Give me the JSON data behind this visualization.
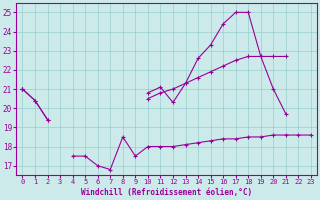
{
  "x": [
    0,
    1,
    2,
    3,
    4,
    5,
    6,
    7,
    8,
    9,
    10,
    11,
    12,
    13,
    14,
    15,
    16,
    17,
    18,
    19,
    20,
    21,
    22,
    23
  ],
  "line_bottom": [
    21.0,
    20.4,
    19.4,
    null,
    17.5,
    17.5,
    17.0,
    16.8,
    18.5,
    17.5,
    18.0,
    18.0,
    18.0,
    18.1,
    18.2,
    18.3,
    18.4,
    18.4,
    18.5,
    18.5,
    18.6,
    18.6,
    18.6,
    18.6
  ],
  "line_mid": [
    21.0,
    null,
    null,
    null,
    null,
    null,
    null,
    null,
    null,
    null,
    20.5,
    20.8,
    21.0,
    21.3,
    21.6,
    21.9,
    22.2,
    22.5,
    22.7,
    22.7,
    22.7,
    22.7,
    null,
    null
  ],
  "line_top": [
    21.0,
    20.4,
    19.4,
    null,
    null,
    null,
    null,
    null,
    null,
    null,
    20.8,
    21.1,
    20.3,
    21.3,
    22.6,
    23.3,
    24.4,
    25.0,
    25.0,
    22.7,
    21.0,
    19.7,
    null,
    null
  ],
  "bg_color": "#cceaea",
  "line_color": "#990099",
  "grid_color": "#99cccc",
  "xlabel": "Windchill (Refroidissement éolien,°C)",
  "ylim": [
    16.5,
    25.5
  ],
  "xlim": [
    -0.5,
    23.5
  ],
  "yticks": [
    17,
    18,
    19,
    20,
    21,
    22,
    23,
    24,
    25
  ],
  "xticks": [
    0,
    1,
    2,
    3,
    4,
    5,
    6,
    7,
    8,
    9,
    10,
    11,
    12,
    13,
    14,
    15,
    16,
    17,
    18,
    19,
    20,
    21,
    22,
    23
  ]
}
